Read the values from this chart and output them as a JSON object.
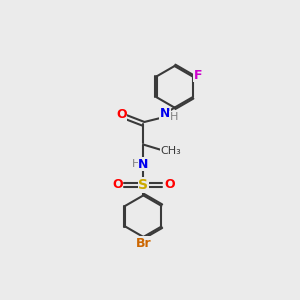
{
  "background_color": "#ebebeb",
  "bond_color": "#3a3a3a",
  "atom_colors": {
    "O": "#ff0000",
    "N": "#0000ee",
    "S": "#ccaa00",
    "Br": "#cc6600",
    "F": "#cc00cc",
    "H": "#808080",
    "C": "#3a3a3a"
  },
  "figsize": [
    3.0,
    3.0
  ],
  "dpi": 100
}
